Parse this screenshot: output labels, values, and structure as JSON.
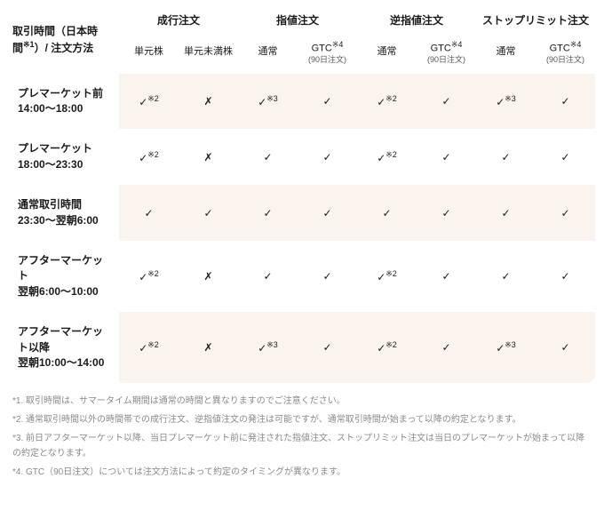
{
  "header": {
    "rowhead_line1": "取引時間（日本時",
    "rowhead_line2": "間",
    "rowhead_sup": "※1",
    "rowhead_line2_after": "）/ 注文方法",
    "groups": [
      "成行注文",
      "指値注文",
      "逆指値注文",
      "ストップリミット注文"
    ],
    "sub": {
      "market1": "単元株",
      "market2": "単元未満株",
      "normal": "通常",
      "gtc": "GTC",
      "gtc_sup": "※4",
      "gtc_sub": "(90日注文)"
    }
  },
  "rows": [
    {
      "label_l1": "プレマーケット前",
      "label_l2": "14:00〜18:00",
      "cells": [
        {
          "v": "✓",
          "sup": "※2"
        },
        {
          "v": "✗",
          "sup": ""
        },
        {
          "v": "✓",
          "sup": "※3"
        },
        {
          "v": "✓",
          "sup": ""
        },
        {
          "v": "✓",
          "sup": "※2"
        },
        {
          "v": "✓",
          "sup": ""
        },
        {
          "v": "✓",
          "sup": "※3"
        },
        {
          "v": "✓",
          "sup": ""
        }
      ],
      "band": "a"
    },
    {
      "label_l1": "プレマーケット",
      "label_l2": "18:00〜23:30",
      "cells": [
        {
          "v": "✓",
          "sup": "※2"
        },
        {
          "v": "✗",
          "sup": ""
        },
        {
          "v": "✓",
          "sup": ""
        },
        {
          "v": "✓",
          "sup": ""
        },
        {
          "v": "✓",
          "sup": "※2"
        },
        {
          "v": "✓",
          "sup": ""
        },
        {
          "v": "✓",
          "sup": ""
        },
        {
          "v": "✓",
          "sup": ""
        }
      ],
      "band": "b"
    },
    {
      "label_l1": "通常取引時間",
      "label_l2": "23:30〜翌朝6:00",
      "cells": [
        {
          "v": "✓",
          "sup": ""
        },
        {
          "v": "✓",
          "sup": ""
        },
        {
          "v": "✓",
          "sup": ""
        },
        {
          "v": "✓",
          "sup": ""
        },
        {
          "v": "✓",
          "sup": ""
        },
        {
          "v": "✓",
          "sup": ""
        },
        {
          "v": "✓",
          "sup": ""
        },
        {
          "v": "✓",
          "sup": ""
        }
      ],
      "band": "a"
    },
    {
      "label_l1": "アフターマーケット",
      "label_l2": "翌朝6:00〜10:00",
      "cells": [
        {
          "v": "✓",
          "sup": "※2"
        },
        {
          "v": "✗",
          "sup": ""
        },
        {
          "v": "✓",
          "sup": ""
        },
        {
          "v": "✓",
          "sup": ""
        },
        {
          "v": "✓",
          "sup": "※2"
        },
        {
          "v": "✓",
          "sup": ""
        },
        {
          "v": "✓",
          "sup": ""
        },
        {
          "v": "✓",
          "sup": ""
        }
      ],
      "band": "b"
    },
    {
      "label_l1": "アフターマーケット以降",
      "label_l2": "翌朝10:00〜14:00",
      "cells": [
        {
          "v": "✓",
          "sup": "※2"
        },
        {
          "v": "✗",
          "sup": ""
        },
        {
          "v": "✓",
          "sup": "※3"
        },
        {
          "v": "✓",
          "sup": ""
        },
        {
          "v": "✓",
          "sup": "※2"
        },
        {
          "v": "✓",
          "sup": ""
        },
        {
          "v": "✓",
          "sup": "※3"
        },
        {
          "v": "✓",
          "sup": ""
        }
      ],
      "band": "a"
    }
  ],
  "footnotes": [
    "*1. 取引時間は、サマータイム期間は通常の時間と異なりますのでご注意ください。",
    "*2. 通常取引時間以外の時間帯での成行注文、逆指値注文の発注は可能ですが、通常取引時間が始まって以降の約定となります。",
    "*3. 前日アフターマーケット以降、当日プレマーケット前に発注された指値注文、ストップリミット注文は当日のプレマーケットが始まって以降の約定となります。",
    "*4. GTC（90日注文）については注文方法によって約定のタイミングが異なります。"
  ],
  "style": {
    "band_a_bg": "#fbf4ee",
    "band_b_bg": "#ffffff",
    "text_color": "#1a1a1a",
    "footnote_color": "#8a8a8a"
  }
}
